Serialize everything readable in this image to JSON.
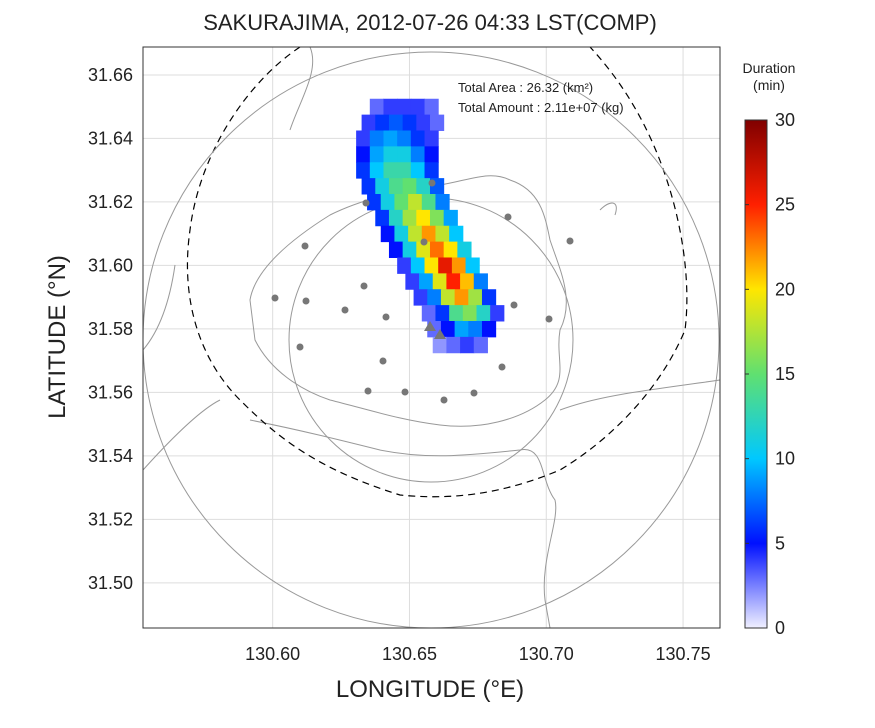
{
  "chart_data": {
    "type": "heatmap",
    "title": "SAKURAJIMA, 2012-07-26 04:33 LST(COMP)",
    "x_label": "LONGITUDE (°E)",
    "y_label": "LATITUDE (°N)",
    "annotations": [
      "Total Area   : 26.32 (km²)",
      "Total Amount : 2.11e+07 (kg)"
    ],
    "xlim": [
      130.5526,
      130.7635
    ],
    "ylim": [
      31.4858,
      31.6688
    ],
    "xticks": [
      {
        "value": 130.6,
        "label": "130.60"
      },
      {
        "value": 130.65,
        "label": "130.65"
      },
      {
        "value": 130.7,
        "label": "130.70"
      },
      {
        "value": 130.75,
        "label": "130.75"
      }
    ],
    "yticks": [
      {
        "value": 31.5,
        "label": "31.50"
      },
      31.52,
      31.54,
      31.56,
      31.58,
      {
        "value": 31.6,
        "label": "31.60"
      },
      31.62,
      31.64,
      31.66
    ],
    "grid": true,
    "cell_size": [
      0.005,
      0.005
    ],
    "rows": [
      {
        "lat": 31.65,
        "lon_start": 130.638,
        "values": [
          3,
          4,
          4,
          4,
          3
        ]
      },
      {
        "lat": 31.645,
        "lon_start": 130.635,
        "values": [
          4,
          6,
          7,
          6,
          4,
          3
        ]
      },
      {
        "lat": 31.64,
        "lon_start": 130.633,
        "values": [
          4,
          8,
          9,
          8,
          6,
          4
        ]
      },
      {
        "lat": 31.635,
        "lon_start": 130.633,
        "values": [
          5,
          9,
          11,
          11,
          8,
          5
        ]
      },
      {
        "lat": 31.63,
        "lon_start": 130.633,
        "values": [
          6,
          10,
          13,
          13,
          10,
          6
        ]
      },
      {
        "lat": 31.625,
        "lon_start": 130.635,
        "values": [
          6,
          11,
          14,
          15,
          12,
          7
        ]
      },
      {
        "lat": 31.62,
        "lon_start": 130.637,
        "values": [
          6,
          11,
          15,
          18,
          14,
          8
        ]
      },
      {
        "lat": 31.615,
        "lon_start": 130.64,
        "values": [
          6,
          12,
          17,
          20,
          16,
          9
        ]
      },
      {
        "lat": 31.61,
        "lon_start": 130.642,
        "values": [
          5,
          11,
          18,
          22,
          18,
          10
        ]
      },
      {
        "lat": 31.605,
        "lon_start": 130.645,
        "values": [
          5,
          11,
          19,
          23,
          20,
          11
        ]
      },
      {
        "lat": 31.6,
        "lon_start": 130.648,
        "values": [
          4,
          10,
          20,
          26,
          22,
          10
        ]
      },
      {
        "lat": 31.595,
        "lon_start": 130.651,
        "values": [
          4,
          9,
          19,
          25,
          21,
          8
        ]
      },
      {
        "lat": 31.59,
        "lon_start": 130.654,
        "values": [
          4,
          8,
          18,
          22,
          17,
          6
        ]
      },
      {
        "lat": 31.585,
        "lon_start": 130.657,
        "values": [
          3,
          6,
          14,
          16,
          12,
          4
        ]
      },
      {
        "lat": 31.58,
        "lon_start": 130.659,
        "values": [
          3,
          5,
          9,
          8,
          5
        ]
      },
      {
        "lat": 31.575,
        "lon_start": 130.661,
        "values": [
          2,
          3,
          4,
          3
        ]
      }
    ],
    "colorbar": {
      "title": [
        "Duration",
        "(min)"
      ],
      "lim": [
        0,
        30
      ],
      "ticks": [
        0,
        5,
        10,
        15,
        20,
        25,
        30
      ],
      "colors": [
        "#f0f0ff",
        "#0010ff",
        "#00c8ff",
        "#60e070",
        "#ffe600",
        "#ff2000",
        "#800000"
      ]
    }
  }
}
